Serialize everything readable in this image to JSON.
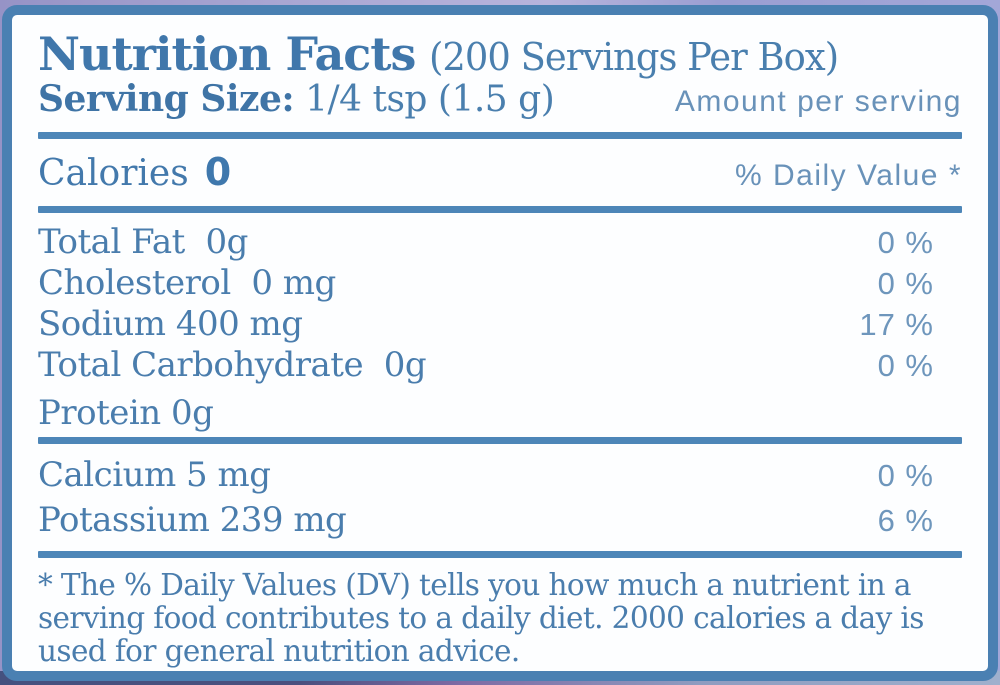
{
  "label": {
    "title": "Nutrition Facts",
    "servings_note": "(200 Servings Per Box)",
    "serving_size_label": "Serving Size:",
    "serving_size_value": " 1/4 tsp (1.5 g)",
    "amount_per_serving": "Amount per serving",
    "calories_label": "Calories",
    "calories_value": "0",
    "daily_value_header": "% Daily Value *",
    "nutrients": [
      {
        "name": "Total Fat  0g",
        "dv": "0 %"
      },
      {
        "name": "Cholesterol  0 mg",
        "dv": "0 %"
      },
      {
        "name": "Sodium 400 mg",
        "dv": "17 %"
      },
      {
        "name": "Total Carbohydrate  0g",
        "dv": "0 %"
      },
      {
        "name": "Protein 0g",
        "dv": ""
      }
    ],
    "minerals": [
      {
        "name": "Calcium 5 mg",
        "dv": "0 %"
      },
      {
        "name": "Potassium 239 mg",
        "dv": "6 %"
      }
    ],
    "footnote": "* The % Daily Values (DV) tells you how much a nutrient in a serving food contributes to a daily diet. 2000 calories a day is used for general nutrition advice."
  },
  "colors": {
    "text_blue": "#4379ac",
    "light_blue": "#6992b9",
    "border_blue": "#4a80b2",
    "divider_blue": "#4d86b8",
    "background_top": "#aaa7d3",
    "background_bottom": "#4b4f7e"
  }
}
